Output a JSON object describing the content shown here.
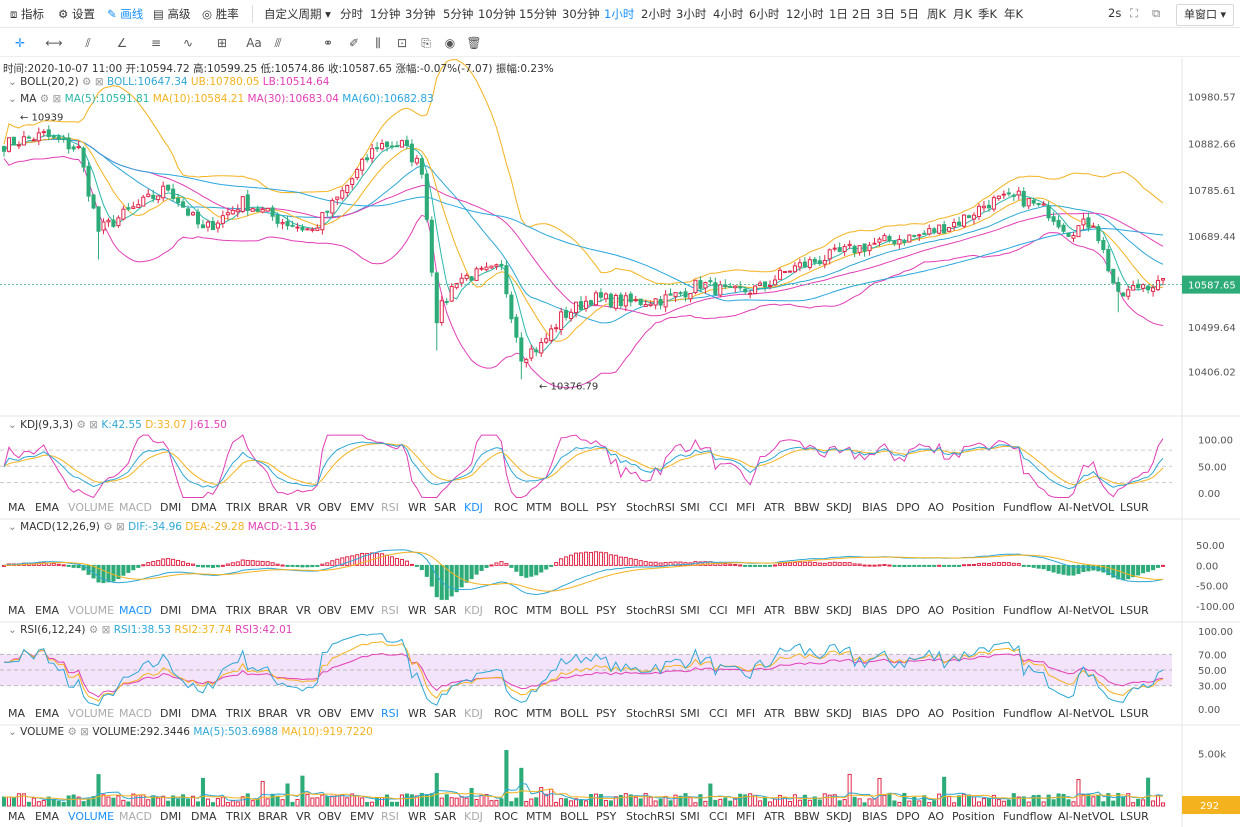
{
  "topbar": {
    "items": [
      {
        "label": "指标",
        "icon": "indicator-icon"
      },
      {
        "label": "设置",
        "icon": "settings-icon"
      },
      {
        "label": "画线",
        "icon": "draw-line-icon",
        "active": true
      },
      {
        "label": "高级",
        "icon": "advanced-icon"
      },
      {
        "label": "胜率",
        "icon": "win-rate-icon"
      }
    ],
    "custom_period": "自定义周期",
    "periods": [
      "分时",
      "1分钟",
      "3分钟",
      "5分钟",
      "10分钟",
      "15分钟",
      "30分钟",
      "1小时",
      "2小时",
      "3小时",
      "4小时",
      "6小时",
      "12小时",
      "1日",
      "2日",
      "3日",
      "5日",
      "周K",
      "月K",
      "季K",
      "年K"
    ],
    "active_period": "1小时",
    "refresh": "2s",
    "window_mode": "单窗口"
  },
  "info_line": {
    "time": "时间:2020-10-07 11:00",
    "open": "开:10594.72",
    "high": "高:10599.25",
    "low": "低:10574.86",
    "close": "收:10587.65",
    "change": "涨幅:-0.07%(-7.07)",
    "amplitude": "振幅:0.23%"
  },
  "main_panel": {
    "boll_title": "BOLL(20,2)",
    "boll_values": {
      "boll": "BOLL:10647.34",
      "ub": "UB:10780.05",
      "lb": "LB:10514.64"
    },
    "ma_title": "MA",
    "ma_values": {
      "ma5": "MA(5):10591.81",
      "ma10": "MA(10):10584.21",
      "ma30": "MA(30):10683.04",
      "ma60": "MA(60):10682.83"
    },
    "high_marker": "10939",
    "low_marker": "10376.79",
    "y_ticks": [
      "10980.57",
      "10882.66",
      "10785.61",
      "10689.44",
      "10587.65",
      "10499.64",
      "10406.02"
    ],
    "last_price": "10587.65"
  },
  "kdj_panel": {
    "title": "KDJ(9,3,3)",
    "values": {
      "k": "K:42.55",
      "d": "D:33.07",
      "j": "J:61.50"
    },
    "y_ticks": [
      "100.00",
      "50.00",
      "0.00"
    ]
  },
  "macd_panel": {
    "title": "MACD(12,26,9)",
    "values": {
      "dif": "DIF:-34.96",
      "dea": "DEA:-29.28",
      "macd": "MACD:-11.36"
    },
    "y_ticks": [
      "50.00",
      "0.00",
      "-50.00",
      "-100.00"
    ]
  },
  "rsi_panel": {
    "title": "RSI(6,12,24)",
    "values": {
      "rsi1": "RSI1:38.53",
      "rsi2": "RSI2:37.74",
      "rsi3": "RSI3:42.01"
    },
    "y_ticks": [
      "100.00",
      "70.00",
      "50.00",
      "30.00",
      "0.00"
    ]
  },
  "volume_panel": {
    "title": "VOLUME",
    "values": {
      "vol": "VOLUME:292.3446",
      "ma5": "MA(5):503.6988",
      "ma10": "MA(10):919.7220"
    },
    "y_ticks": [
      "5.00k"
    ],
    "last_volume": "292"
  },
  "indicator_tabs": [
    "MA",
    "EMA",
    "VOLUME",
    "MACD",
    "DMI",
    "DMA",
    "TRIX",
    "BRAR",
    "VR",
    "OBV",
    "EMV",
    "RSI",
    "WR",
    "SAR",
    "KDJ",
    "ROC",
    "MTM",
    "BOLL",
    "PSY",
    "StochRSI",
    "SMI",
    "CCI",
    "MFI",
    "ATR",
    "BBW",
    "SKDJ",
    "BIAS",
    "DPO",
    "AO",
    "Position",
    "Fundflow",
    "AI-NetVOL",
    "LSUR"
  ],
  "tab_rows": [
    {
      "active": "KDJ",
      "muted": [
        "VOLUME",
        "MACD",
        "RSI"
      ]
    },
    {
      "active": "MACD",
      "muted": [
        "VOLUME",
        "RSI",
        "KDJ"
      ]
    },
    {
      "active": "RSI",
      "muted": [
        "VOLUME",
        "MACD",
        "KDJ"
      ]
    },
    {
      "active": "VOLUME",
      "muted": [
        "MACD",
        "RSI",
        "KDJ"
      ]
    }
  ],
  "colors": {
    "up": "#e0294a",
    "down": "#2dab78",
    "boll_mid": "#2ca7d6",
    "ub": "#f5b21f",
    "lb": "#e33eb7",
    "ma5": "#2ab7a9",
    "ma10": "#f5b21f",
    "ma30": "#e33eb7",
    "ma60": "#2aa7e0",
    "accent": "#1890ff"
  },
  "chart_data": {
    "type": "candlestick",
    "title": "",
    "ylim": [
      10376.79,
      10980.57
    ],
    "anchors": [
      [
        0,
        10880
      ],
      [
        8,
        10900
      ],
      [
        15,
        10870
      ],
      [
        19,
        10700
      ],
      [
        25,
        10740
      ],
      [
        33,
        10790
      ],
      [
        40,
        10700
      ],
      [
        48,
        10760
      ],
      [
        56,
        10720
      ],
      [
        62,
        10700
      ],
      [
        68,
        10780
      ],
      [
        75,
        10880
      ],
      [
        80,
        10880
      ],
      [
        84,
        10830
      ],
      [
        87,
        10520
      ],
      [
        91,
        10600
      ],
      [
        100,
        10620
      ],
      [
        104,
        10440
      ],
      [
        108,
        10460
      ],
      [
        112,
        10520
      ],
      [
        118,
        10560
      ],
      [
        126,
        10550
      ],
      [
        134,
        10560
      ],
      [
        140,
        10590
      ],
      [
        146,
        10570
      ],
      [
        152,
        10580
      ],
      [
        158,
        10620
      ],
      [
        164,
        10640
      ],
      [
        170,
        10660
      ],
      [
        178,
        10680
      ],
      [
        184,
        10690
      ],
      [
        192,
        10720
      ],
      [
        198,
        10760
      ],
      [
        204,
        10770
      ],
      [
        210,
        10740
      ],
      [
        214,
        10700
      ],
      [
        219,
        10720
      ],
      [
        224,
        10560
      ],
      [
        229,
        10590
      ],
      [
        233,
        10587
      ]
    ]
  }
}
